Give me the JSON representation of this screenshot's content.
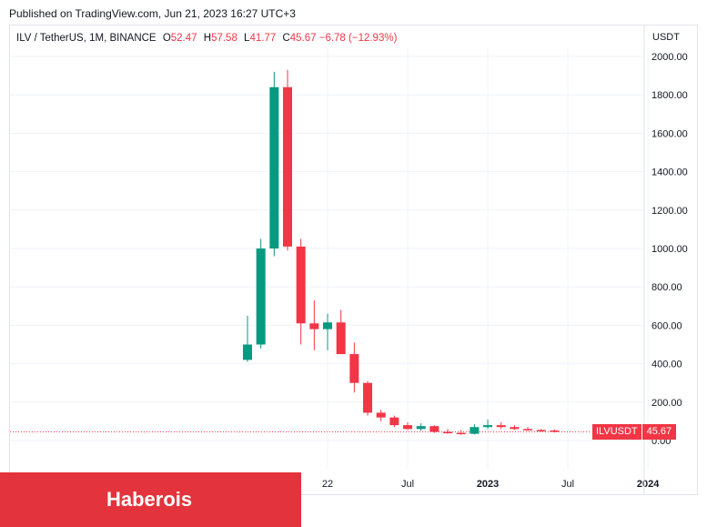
{
  "header": {
    "published": "Published on TradingView.com, Jun 21, 2023 16:27 UTC+3"
  },
  "legend": {
    "symbol": "ILV / TetherUS, 1M, BINANCE",
    "open_label": "O",
    "open": "52.47",
    "high_label": "H",
    "high": "57.58",
    "low_label": "L",
    "low": "41.77",
    "close_label": "C",
    "close": "45.67",
    "change": "−6.78 (−12.93%)"
  },
  "axis": {
    "currency": "USDT"
  },
  "price_badge": {
    "symbol": "ILVUSDT",
    "value": "45.67"
  },
  "watermark": {
    "text": "Haberois"
  },
  "colors": {
    "up": "#089981",
    "down": "#f23645",
    "grid": "#f0f3fa",
    "text": "#131722"
  },
  "chart_data": {
    "type": "candlestick",
    "ylim": [
      -100,
      2050
    ],
    "y_ticks": [
      0,
      200,
      400,
      600,
      800,
      1000,
      1200,
      1400,
      1600,
      1800,
      2000
    ],
    "y_tick_labels": [
      "0.00",
      "200.00",
      "400.00",
      "600.00",
      "800.00",
      "1000.00",
      "1200.00",
      "1400.00",
      "1600.00",
      "1800.00",
      "2000.00"
    ],
    "x_range": [
      "2021-03",
      "2024-03"
    ],
    "x_ticks": [
      {
        "date": "2022-01",
        "label": "22"
      },
      {
        "date": "2022-07",
        "label": "Jul"
      },
      {
        "date": "2023-01",
        "label": "2023"
      },
      {
        "date": "2023-07",
        "label": "Jul"
      },
      {
        "date": "2024-01",
        "label": "2024"
      }
    ],
    "last_price": 45.67,
    "grid": true,
    "candles": [
      {
        "date": "2021-07",
        "o": 420,
        "h": 650,
        "l": 410,
        "c": 500
      },
      {
        "date": "2021-08",
        "o": 500,
        "h": 1050,
        "l": 480,
        "c": 1000
      },
      {
        "date": "2021-09",
        "o": 1000,
        "h": 1920,
        "l": 960,
        "c": 1840
      },
      {
        "date": "2021-10",
        "o": 1840,
        "h": 1930,
        "l": 990,
        "c": 1010
      },
      {
        "date": "2021-11",
        "o": 1010,
        "h": 1050,
        "l": 500,
        "c": 610
      },
      {
        "date": "2021-12",
        "o": 610,
        "h": 730,
        "l": 470,
        "c": 580
      },
      {
        "date": "2022-01",
        "o": 580,
        "h": 660,
        "l": 470,
        "c": 615
      },
      {
        "date": "2022-02",
        "o": 615,
        "h": 680,
        "l": 450,
        "c": 450
      },
      {
        "date": "2022-03",
        "o": 450,
        "h": 510,
        "l": 250,
        "c": 300
      },
      {
        "date": "2022-04",
        "o": 300,
        "h": 310,
        "l": 130,
        "c": 145
      },
      {
        "date": "2022-05",
        "o": 145,
        "h": 160,
        "l": 100,
        "c": 120
      },
      {
        "date": "2022-06",
        "o": 120,
        "h": 130,
        "l": 70,
        "c": 80
      },
      {
        "date": "2022-07",
        "o": 80,
        "h": 95,
        "l": 55,
        "c": 60
      },
      {
        "date": "2022-08",
        "o": 60,
        "h": 90,
        "l": 50,
        "c": 75
      },
      {
        "date": "2022-09",
        "o": 75,
        "h": 80,
        "l": 40,
        "c": 45
      },
      {
        "date": "2022-10",
        "o": 45,
        "h": 60,
        "l": 35,
        "c": 40
      },
      {
        "date": "2022-11",
        "o": 40,
        "h": 55,
        "l": 30,
        "c": 35
      },
      {
        "date": "2022-12",
        "o": 35,
        "h": 85,
        "l": 32,
        "c": 70
      },
      {
        "date": "2023-01",
        "o": 70,
        "h": 110,
        "l": 60,
        "c": 80
      },
      {
        "date": "2023-02",
        "o": 80,
        "h": 95,
        "l": 60,
        "c": 70
      },
      {
        "date": "2023-03",
        "o": 70,
        "h": 80,
        "l": 55,
        "c": 60
      },
      {
        "date": "2023-04",
        "o": 60,
        "h": 70,
        "l": 50,
        "c": 55
      },
      {
        "date": "2023-05",
        "o": 55,
        "h": 60,
        "l": 48,
        "c": 52
      },
      {
        "date": "2023-06",
        "o": 52.47,
        "h": 57.58,
        "l": 41.77,
        "c": 45.67
      }
    ]
  }
}
